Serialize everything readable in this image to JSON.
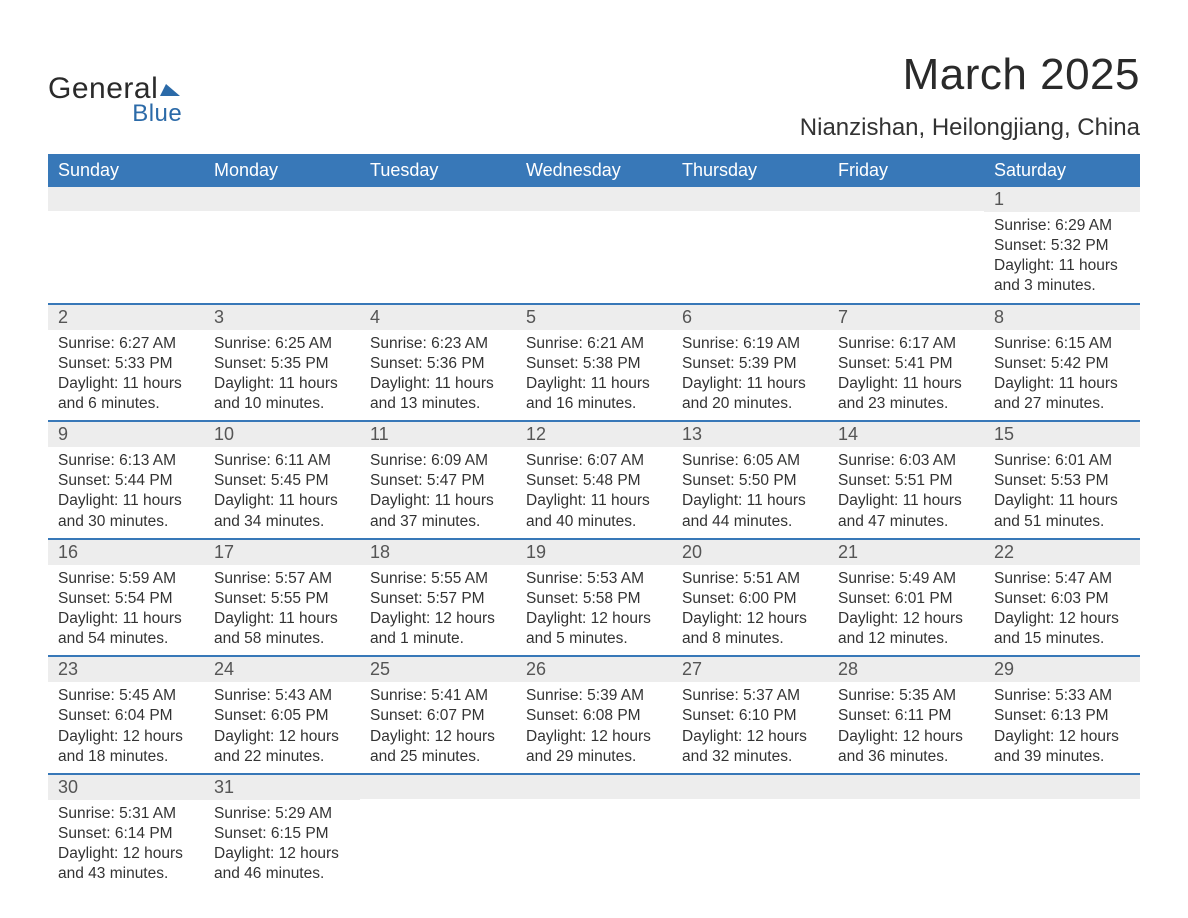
{
  "logo": {
    "wordGeneral": "General",
    "wordBlue": "Blue",
    "textColor": "#2a2a2a",
    "blueColor": "#2b6aa8"
  },
  "header": {
    "monthTitle": "March 2025",
    "location": "Nianzishan, Heilongjiang, China",
    "monthTitleFontSize": 44,
    "locationFontSize": 24
  },
  "columns": [
    "Sunday",
    "Monday",
    "Tuesday",
    "Wednesday",
    "Thursday",
    "Friday",
    "Saturday"
  ],
  "calendar": {
    "headerBg": "#3878b8",
    "headerText": "#ffffff",
    "dayStripBg": "#ededed",
    "rowBorderColor": "#3878b8",
    "bodyTextColor": "#333333",
    "bodyFontSize": 15.5,
    "dayNumberFontSize": 18
  },
  "weeks": [
    [
      {
        "day": "",
        "lines": []
      },
      {
        "day": "",
        "lines": []
      },
      {
        "day": "",
        "lines": []
      },
      {
        "day": "",
        "lines": []
      },
      {
        "day": "",
        "lines": []
      },
      {
        "day": "",
        "lines": []
      },
      {
        "day": "1",
        "lines": [
          "Sunrise: 6:29 AM",
          "Sunset: 5:32 PM",
          "Daylight: 11 hours",
          "and 3 minutes."
        ]
      }
    ],
    [
      {
        "day": "2",
        "lines": [
          "Sunrise: 6:27 AM",
          "Sunset: 5:33 PM",
          "Daylight: 11 hours",
          "and 6 minutes."
        ]
      },
      {
        "day": "3",
        "lines": [
          "Sunrise: 6:25 AM",
          "Sunset: 5:35 PM",
          "Daylight: 11 hours",
          "and 10 minutes."
        ]
      },
      {
        "day": "4",
        "lines": [
          "Sunrise: 6:23 AM",
          "Sunset: 5:36 PM",
          "Daylight: 11 hours",
          "and 13 minutes."
        ]
      },
      {
        "day": "5",
        "lines": [
          "Sunrise: 6:21 AM",
          "Sunset: 5:38 PM",
          "Daylight: 11 hours",
          "and 16 minutes."
        ]
      },
      {
        "day": "6",
        "lines": [
          "Sunrise: 6:19 AM",
          "Sunset: 5:39 PM",
          "Daylight: 11 hours",
          "and 20 minutes."
        ]
      },
      {
        "day": "7",
        "lines": [
          "Sunrise: 6:17 AM",
          "Sunset: 5:41 PM",
          "Daylight: 11 hours",
          "and 23 minutes."
        ]
      },
      {
        "day": "8",
        "lines": [
          "Sunrise: 6:15 AM",
          "Sunset: 5:42 PM",
          "Daylight: 11 hours",
          "and 27 minutes."
        ]
      }
    ],
    [
      {
        "day": "9",
        "lines": [
          "Sunrise: 6:13 AM",
          "Sunset: 5:44 PM",
          "Daylight: 11 hours",
          "and 30 minutes."
        ]
      },
      {
        "day": "10",
        "lines": [
          "Sunrise: 6:11 AM",
          "Sunset: 5:45 PM",
          "Daylight: 11 hours",
          "and 34 minutes."
        ]
      },
      {
        "day": "11",
        "lines": [
          "Sunrise: 6:09 AM",
          "Sunset: 5:47 PM",
          "Daylight: 11 hours",
          "and 37 minutes."
        ]
      },
      {
        "day": "12",
        "lines": [
          "Sunrise: 6:07 AM",
          "Sunset: 5:48 PM",
          "Daylight: 11 hours",
          "and 40 minutes."
        ]
      },
      {
        "day": "13",
        "lines": [
          "Sunrise: 6:05 AM",
          "Sunset: 5:50 PM",
          "Daylight: 11 hours",
          "and 44 minutes."
        ]
      },
      {
        "day": "14",
        "lines": [
          "Sunrise: 6:03 AM",
          "Sunset: 5:51 PM",
          "Daylight: 11 hours",
          "and 47 minutes."
        ]
      },
      {
        "day": "15",
        "lines": [
          "Sunrise: 6:01 AM",
          "Sunset: 5:53 PM",
          "Daylight: 11 hours",
          "and 51 minutes."
        ]
      }
    ],
    [
      {
        "day": "16",
        "lines": [
          "Sunrise: 5:59 AM",
          "Sunset: 5:54 PM",
          "Daylight: 11 hours",
          "and 54 minutes."
        ]
      },
      {
        "day": "17",
        "lines": [
          "Sunrise: 5:57 AM",
          "Sunset: 5:55 PM",
          "Daylight: 11 hours",
          "and 58 minutes."
        ]
      },
      {
        "day": "18",
        "lines": [
          "Sunrise: 5:55 AM",
          "Sunset: 5:57 PM",
          "Daylight: 12 hours",
          "and 1 minute."
        ]
      },
      {
        "day": "19",
        "lines": [
          "Sunrise: 5:53 AM",
          "Sunset: 5:58 PM",
          "Daylight: 12 hours",
          "and 5 minutes."
        ]
      },
      {
        "day": "20",
        "lines": [
          "Sunrise: 5:51 AM",
          "Sunset: 6:00 PM",
          "Daylight: 12 hours",
          "and 8 minutes."
        ]
      },
      {
        "day": "21",
        "lines": [
          "Sunrise: 5:49 AM",
          "Sunset: 6:01 PM",
          "Daylight: 12 hours",
          "and 12 minutes."
        ]
      },
      {
        "day": "22",
        "lines": [
          "Sunrise: 5:47 AM",
          "Sunset: 6:03 PM",
          "Daylight: 12 hours",
          "and 15 minutes."
        ]
      }
    ],
    [
      {
        "day": "23",
        "lines": [
          "Sunrise: 5:45 AM",
          "Sunset: 6:04 PM",
          "Daylight: 12 hours",
          "and 18 minutes."
        ]
      },
      {
        "day": "24",
        "lines": [
          "Sunrise: 5:43 AM",
          "Sunset: 6:05 PM",
          "Daylight: 12 hours",
          "and 22 minutes."
        ]
      },
      {
        "day": "25",
        "lines": [
          "Sunrise: 5:41 AM",
          "Sunset: 6:07 PM",
          "Daylight: 12 hours",
          "and 25 minutes."
        ]
      },
      {
        "day": "26",
        "lines": [
          "Sunrise: 5:39 AM",
          "Sunset: 6:08 PM",
          "Daylight: 12 hours",
          "and 29 minutes."
        ]
      },
      {
        "day": "27",
        "lines": [
          "Sunrise: 5:37 AM",
          "Sunset: 6:10 PM",
          "Daylight: 12 hours",
          "and 32 minutes."
        ]
      },
      {
        "day": "28",
        "lines": [
          "Sunrise: 5:35 AM",
          "Sunset: 6:11 PM",
          "Daylight: 12 hours",
          "and 36 minutes."
        ]
      },
      {
        "day": "29",
        "lines": [
          "Sunrise: 5:33 AM",
          "Sunset: 6:13 PM",
          "Daylight: 12 hours",
          "and 39 minutes."
        ]
      }
    ],
    [
      {
        "day": "30",
        "lines": [
          "Sunrise: 5:31 AM",
          "Sunset: 6:14 PM",
          "Daylight: 12 hours",
          "and 43 minutes."
        ]
      },
      {
        "day": "31",
        "lines": [
          "Sunrise: 5:29 AM",
          "Sunset: 6:15 PM",
          "Daylight: 12 hours",
          "and 46 minutes."
        ]
      },
      {
        "day": "",
        "lines": []
      },
      {
        "day": "",
        "lines": []
      },
      {
        "day": "",
        "lines": []
      },
      {
        "day": "",
        "lines": []
      },
      {
        "day": "",
        "lines": []
      }
    ]
  ]
}
